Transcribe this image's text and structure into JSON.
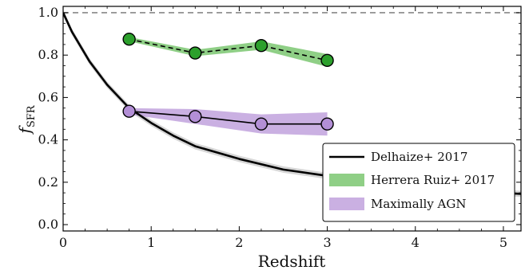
{
  "chart_data": {
    "type": "line",
    "xlabel": "Redshift",
    "ylabel": "f",
    "ylabel_subscript": "SFR",
    "xlim": [
      0,
      5.2
    ],
    "ylim": [
      -0.03,
      1.03
    ],
    "x_ticks": [
      0,
      1,
      2,
      3,
      4,
      5
    ],
    "y_ticks": [
      0.0,
      0.2,
      0.4,
      0.6,
      0.8,
      1.0
    ],
    "x_tick_labels": [
      "0",
      "1",
      "2",
      "3",
      "4",
      "5"
    ],
    "y_tick_labels": [
      "0.0",
      "0.2",
      "0.4",
      "0.6",
      "0.8",
      "1.0"
    ],
    "reference_line": {
      "y": 1.0,
      "style": "dashed",
      "color": "#888888"
    },
    "legend_placement": "lower-right",
    "series": [
      {
        "name": "Delhaize+ 2017",
        "kind": "curve",
        "color": "#000000",
        "band_color": "#cccccc",
        "x": [
          0,
          0.1,
          0.2,
          0.3,
          0.5,
          0.75,
          1.0,
          1.25,
          1.5,
          2.0,
          2.5,
          3.0,
          3.5,
          4.0,
          4.5,
          5.0,
          5.2
        ],
        "y": [
          1.0,
          0.91,
          0.84,
          0.77,
          0.66,
          0.55,
          0.48,
          0.42,
          0.37,
          0.31,
          0.26,
          0.23,
          0.2,
          0.18,
          0.165,
          0.15,
          0.145
        ],
        "band_halfwidth": 0.015
      },
      {
        "name": "Herrera Ruiz+ 2017",
        "kind": "points-dashed",
        "color": "#2ca02c",
        "band_color": "#6abf5e",
        "x": [
          0.75,
          1.5,
          2.25,
          3.0
        ],
        "y": [
          0.875,
          0.81,
          0.845,
          0.775
        ],
        "band_low": [
          0.865,
          0.795,
          0.825,
          0.745
        ],
        "band_high": [
          0.885,
          0.825,
          0.865,
          0.805
        ]
      },
      {
        "name": "Maximally AGN",
        "kind": "points-solid",
        "color": "#b38fd6",
        "band_color": "#b38fd6",
        "x": [
          0.75,
          1.5,
          2.25,
          3.0
        ],
        "y": [
          0.535,
          0.51,
          0.475,
          0.475
        ],
        "band_low": [
          0.52,
          0.475,
          0.43,
          0.42
        ],
        "band_high": [
          0.55,
          0.545,
          0.52,
          0.53
        ]
      }
    ]
  }
}
